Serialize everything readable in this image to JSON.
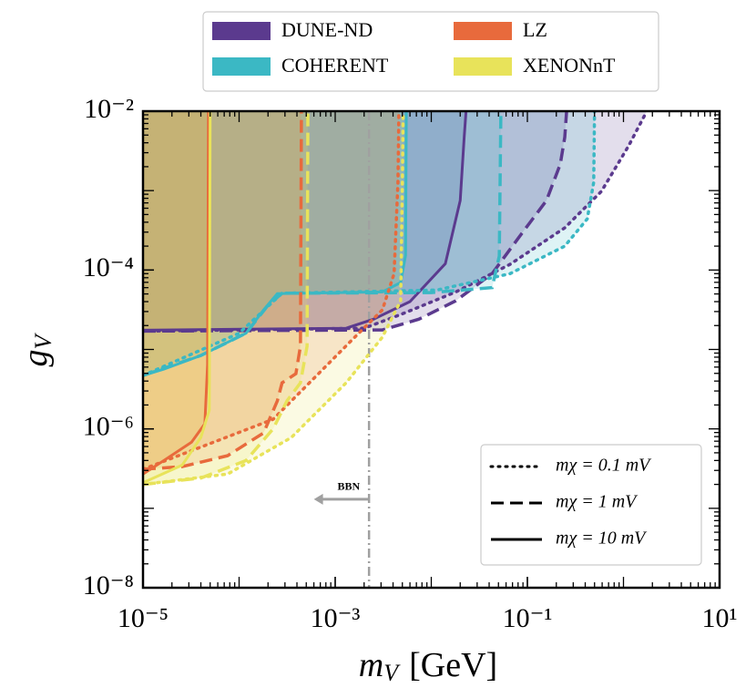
{
  "chart_data": {
    "type": "line",
    "log_x": true,
    "log_y": true,
    "xlim": [
      1e-05,
      10
    ],
    "ylim": [
      1e-08,
      0.01
    ],
    "xticks": [
      {
        "value": 1e-05,
        "label": "10⁻⁵"
      },
      {
        "value": 0.001,
        "label": "10⁻³"
      },
      {
        "value": 0.1,
        "label": "10⁻¹"
      },
      {
        "value": 10,
        "label": "10¹"
      }
    ],
    "yticks": [
      {
        "value": 1e-08,
        "label": "10⁻⁸"
      },
      {
        "value": 1e-06,
        "label": "10⁻⁶"
      },
      {
        "value": 0.0001,
        "label": "10⁻⁴"
      },
      {
        "value": 0.01,
        "label": "10⁻²"
      }
    ],
    "xlabel": {
      "symbol": "m",
      "sub": "V",
      "unit": "[GeV]"
    },
    "ylabel": {
      "symbol": "g",
      "sub": "V"
    },
    "experiments": [
      {
        "name": "DUNE-ND",
        "color": "#5b3a8e",
        "curves": [
          {
            "style": "dotted",
            "x": [
              1e-05,
              0.002,
              0.0048,
              0.018,
              0.066,
              0.245,
              0.59,
              1.13,
              1.75
            ],
            "y": [
              1.7e-05,
              1.85e-05,
              2.75e-05,
              5.3e-05,
              0.000118,
              0.00034,
              0.00098,
              0.00365,
              0.01
            ]
          },
          {
            "style": "dashed",
            "x": [
              1e-05,
              0.0031,
              0.0074,
              0.018,
              0.043,
              0.082,
              0.158,
              0.22,
              0.245,
              0.256
            ],
            "y": [
              1.7e-05,
              1.76e-05,
              2.4e-05,
              4.1e-05,
              9e-05,
              0.00026,
              0.00075,
              0.00215,
              0.0047,
              0.01
            ]
          },
          {
            "style": "solid",
            "x": [
              1e-05,
              0.0013,
              0.0025,
              0.006,
              0.014,
              0.02,
              0.022,
              0.023
            ],
            "y": [
              1.75e-05,
              1.85e-05,
              2.4e-05,
              4e-05,
              0.00012,
              0.00075,
              0.0047,
              0.01
            ]
          }
        ]
      },
      {
        "name": "COHERENT",
        "color": "#3bb8c4",
        "curves": [
          {
            "style": "dotted",
            "x": [
              1e-05,
              0.0001,
              0.00028,
              0.0115,
              0.066,
              0.245,
              0.42,
              0.49,
              0.5
            ],
            "y": [
              4.7e-06,
              1.6e-05,
              5.1e-05,
              5.6e-05,
              9e-05,
              0.0002,
              0.00044,
              0.00127,
              0.01
            ]
          },
          {
            "style": "dashed",
            "x": [
              1e-05,
              4e-05,
              0.000118,
              0.0002,
              0.00028,
              0.01,
              0.043,
              0.051,
              0.053
            ],
            "y": [
              4.7e-06,
              8.4e-06,
              1.6e-05,
              3.6e-05,
              5.1e-05,
              5.2e-05,
              6e-05,
              0.00015,
              0.01
            ]
          },
          {
            "style": "solid",
            "x": [
              1e-05,
              1.65e-05,
              4e-05,
              0.000118,
              0.00018,
              0.00025,
              0.0031,
              0.0048,
              0.0054,
              0.0055
            ],
            "y": [
              4.7e-06,
              5.65e-06,
              8.4e-06,
              1.6e-05,
              3.15e-05,
              5.05e-05,
              5.3e-05,
              6.95e-05,
              0.000153,
              0.01
            ]
          }
        ]
      },
      {
        "name": "LZ",
        "color": "#e86a3c",
        "curves": [
          {
            "style": "dotted",
            "x": [
              1e-05,
              0.000226,
              0.00067,
              0.0016,
              0.0031,
              0.0041,
              0.0045,
              0.0046
            ],
            "y": [
              3.1e-07,
              1.32e-06,
              4.95e-06,
              1.43e-05,
              3.15e-05,
              9e-05,
              0.00127,
              0.01
            ]
          },
          {
            "style": "dashed",
            "x": [
              1e-05,
              2.56e-05,
              7.6e-05,
              0.00018,
              0.00025,
              0.00028,
              0.00039,
              0.000435,
              0.000445
            ],
            "y": [
              3.1e-07,
              3.35e-07,
              4.6e-07,
              8.9e-07,
              2.25e-06,
              3.8e-06,
              4.95e-06,
              1.1e-05,
              0.01
            ]
          },
          {
            "style": "solid",
            "x": [
              1e-05,
              1.65e-05,
              3.2e-05,
              4.4e-05,
              4.7e-05,
              4.8e-05
            ],
            "y": [
              2.7e-07,
              4e-07,
              6.8e-07,
              1.16e-06,
              6.5e-06,
              0.01
            ]
          }
        ]
      },
      {
        "name": "XENONnT",
        "color": "#e8e35a",
        "curves": [
          {
            "style": "dotted",
            "x": [
              1e-05,
              7.6e-05,
              0.00035,
              0.0013,
              0.0031,
              0.0048,
              0.005,
              0.0051
            ],
            "y": [
              2e-07,
              2.7e-07,
              7.8e-07,
              3.8e-06,
              1.43e-05,
              4.1e-05,
              0.00127,
              0.01
            ]
          },
          {
            "style": "dashed",
            "x": [
              1e-05,
              4e-05,
              0.000118,
              0.000226,
              0.000315,
              0.000435,
              0.00051,
              0.00052
            ],
            "y": [
              2e-07,
              2.4e-07,
              4e-07,
              1e-06,
              2.25e-06,
              3.8e-06,
              1.1e-05,
              0.01
            ]
          },
          {
            "style": "solid",
            "x": [
              1e-05,
              2.56e-05,
              4e-05,
              4.9e-05,
              5e-05
            ],
            "y": [
              2.1e-07,
              3.5e-07,
              7.8e-07,
              1.72e-06,
              0.01
            ]
          }
        ]
      }
    ],
    "style_legend": [
      {
        "style": "dotted",
        "label": "mχ = 0.1 mV"
      },
      {
        "style": "dashed",
        "label": "mχ = 1 mV"
      },
      {
        "style": "solid",
        "label": "mχ = 10 mV"
      }
    ],
    "bbn": {
      "text": "BBN",
      "x": 0.00225,
      "y": 1.3e-07,
      "arrow_to_x": 0.0006,
      "color": "#a0a0a0"
    }
  }
}
